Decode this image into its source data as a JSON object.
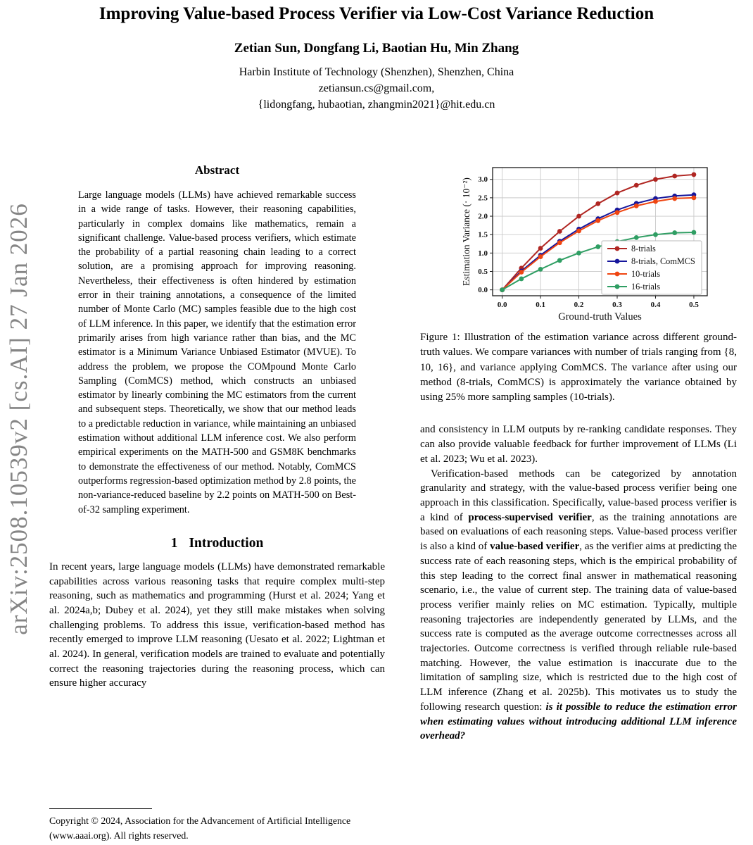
{
  "watermark": {
    "text": "arXiv:2508.10539v2  [cs.AI]  27 Jan 2026"
  },
  "header": {
    "title": "Improving Value-based Process Verifier via Low-Cost Variance Reduction",
    "authors": "Zetian Sun, Dongfang Li, Baotian Hu, Min Zhang",
    "affiliation": "Harbin Institute of Technology (Shenzhen), Shenzhen, China",
    "email1": "zetiansun.cs@gmail.com,",
    "email2": "{lidongfang, hubaotian, zhangmin2021}@hit.edu.cn"
  },
  "abstract": {
    "heading": "Abstract",
    "body": "Large language models (LLMs) have achieved remarkable success in a wide range of tasks. However, their reasoning capabilities, particularly in complex domains like mathematics, remain a significant challenge. Value-based process verifiers, which estimate the probability of a partial reasoning chain leading to a correct solution, are a promising approach for improving reasoning. Nevertheless, their effectiveness is often hindered by estimation error in their training annotations, a consequence of the limited number of Monte Carlo (MC) samples feasible due to the high cost of LLM inference. In this paper, we identify that the estimation error primarily arises from high variance rather than bias, and the MC estimator is a Minimum Variance Unbiased Estimator (MVUE). To address the problem, we propose the COMpound Monte Carlo Sampling (ComMCS) method, which constructs an unbiased estimator by linearly combining the MC estimators from the current and subsequent steps. Theoretically, we show that our method leads to a predictable reduction in variance, while maintaining an unbiased estimation without additional LLM inference cost. We also perform empirical experiments on the MATH-500 and GSM8K benchmarks to demonstrate the effectiveness of our method. Notably, ComMCS outperforms regression-based optimization method by 2.8 points, the non-variance-reduced baseline by 2.2 points on MATH-500 on Best-of-32 sampling experiment."
  },
  "introduction": {
    "number": "1",
    "title": "Introduction",
    "paragraph1": "In recent years, large language models (LLMs) have demonstrated remarkable capabilities across various reasoning tasks that require complex multi-step reasoning, such as mathematics and programming (Hurst et al. 2024; Yang et al. 2024a,b; Dubey et al. 2024), yet they still make mistakes when solving challenging problems. To address this issue, verification-based method has recently emerged to improve LLM reasoning (Uesato et al. 2022; Lightman et al. 2024). In general, verification models are trained to evaluate and potentially correct the reasoning trajectories during the reasoning process, which can ensure higher accuracy"
  },
  "footnote": {
    "text": "Copyright © 2024, Association for the Advancement of Artificial Intelligence (www.aaai.org). All rights reserved."
  },
  "figure": {
    "caption": "Figure 1: Illustration of the estimation variance across different ground-truth values. We compare variances with number of trials ranging from {8, 10, 16}, and variance applying ComMCS. The variance after using our method (8-trials, ComMCS) is approximately the variance obtained by using 25% more sampling samples (10-trials)."
  },
  "chart_data": {
    "type": "line",
    "x": [
      0.0,
      0.05,
      0.1,
      0.15,
      0.2,
      0.25,
      0.3,
      0.35,
      0.4,
      0.45,
      0.5
    ],
    "series": [
      {
        "name": "8-trials",
        "color": "#b02622",
        "values": [
          0.0,
          0.59,
          1.13,
          1.59,
          2.0,
          2.34,
          2.63,
          2.84,
          3.0,
          3.09,
          3.13
        ]
      },
      {
        "name": "8-trials, ComMCS",
        "color": "#16169c",
        "values": [
          0.0,
          0.51,
          0.94,
          1.32,
          1.65,
          1.93,
          2.17,
          2.35,
          2.48,
          2.55,
          2.58
        ]
      },
      {
        "name": "10-trials",
        "color": "#ef4511",
        "values": [
          0.0,
          0.48,
          0.9,
          1.28,
          1.6,
          1.88,
          2.1,
          2.28,
          2.4,
          2.48,
          2.5
        ]
      },
      {
        "name": "16-trials",
        "color": "#2f9e63",
        "values": [
          0.0,
          0.3,
          0.56,
          0.8,
          1.0,
          1.17,
          1.31,
          1.42,
          1.5,
          1.55,
          1.56
        ]
      }
    ],
    "title": "",
    "xlabel": "Ground-truth Values",
    "ylabel": "Estimation Variance (· 10⁻²)",
    "xticks": [
      "0.0",
      "0.1",
      "0.2",
      "0.3",
      "0.4",
      "0.5"
    ],
    "yticks": [
      "0.0",
      "0.5",
      "1.0",
      "1.5",
      "2.0",
      "2.5",
      "3.0"
    ],
    "xlim": [
      -0.025,
      0.535
    ],
    "ylim": [
      -0.16,
      3.32
    ],
    "grid": true,
    "legend_position": "lower right"
  },
  "right_column": {
    "para1": "and consistency in LLM outputs by re-ranking candidate responses. They can also provide valuable feedback for further improvement of LLMs (Li et al. 2023; Wu et al. 2023).",
    "para2_segments": [
      {
        "t": "Verification-based methods can be categorized by annotation granularity and strategy, with the value-based process verifier being one approach in this classification. Specifically, value-based process verifier is a kind of "
      },
      {
        "t": "process-supervised verifier",
        "b": true
      },
      {
        "t": ", as the training annotations are based on evaluations of each reasoning steps. Value-based process verifier is also a kind of "
      },
      {
        "t": "value-based verifier",
        "b": true
      },
      {
        "t": ", as the verifier aims at predicting the success rate of each reasoning steps, which is the empirical probability of this step leading to the correct final answer in mathematical reasoning scenario, i.e., the value of current step. The training data of value-based process verifier mainly relies on MC estimation. Typically, multiple reasoning trajectories are independently generated by LLMs, and the success rate is computed as the average outcome correctnesses across all trajectories. Outcome correctness is verified through reliable rule-based matching. However, the value estimation is inaccurate due to the limitation of sampling size, which is restricted due to the high cost of LLM inference (Zhang et al. 2025b). This motivates us to study the following research question: "
      },
      {
        "t": "is it possible to reduce the estimation error when estimating values without introducing additional LLM inference overhead?",
        "b": true,
        "i": true
      }
    ]
  }
}
